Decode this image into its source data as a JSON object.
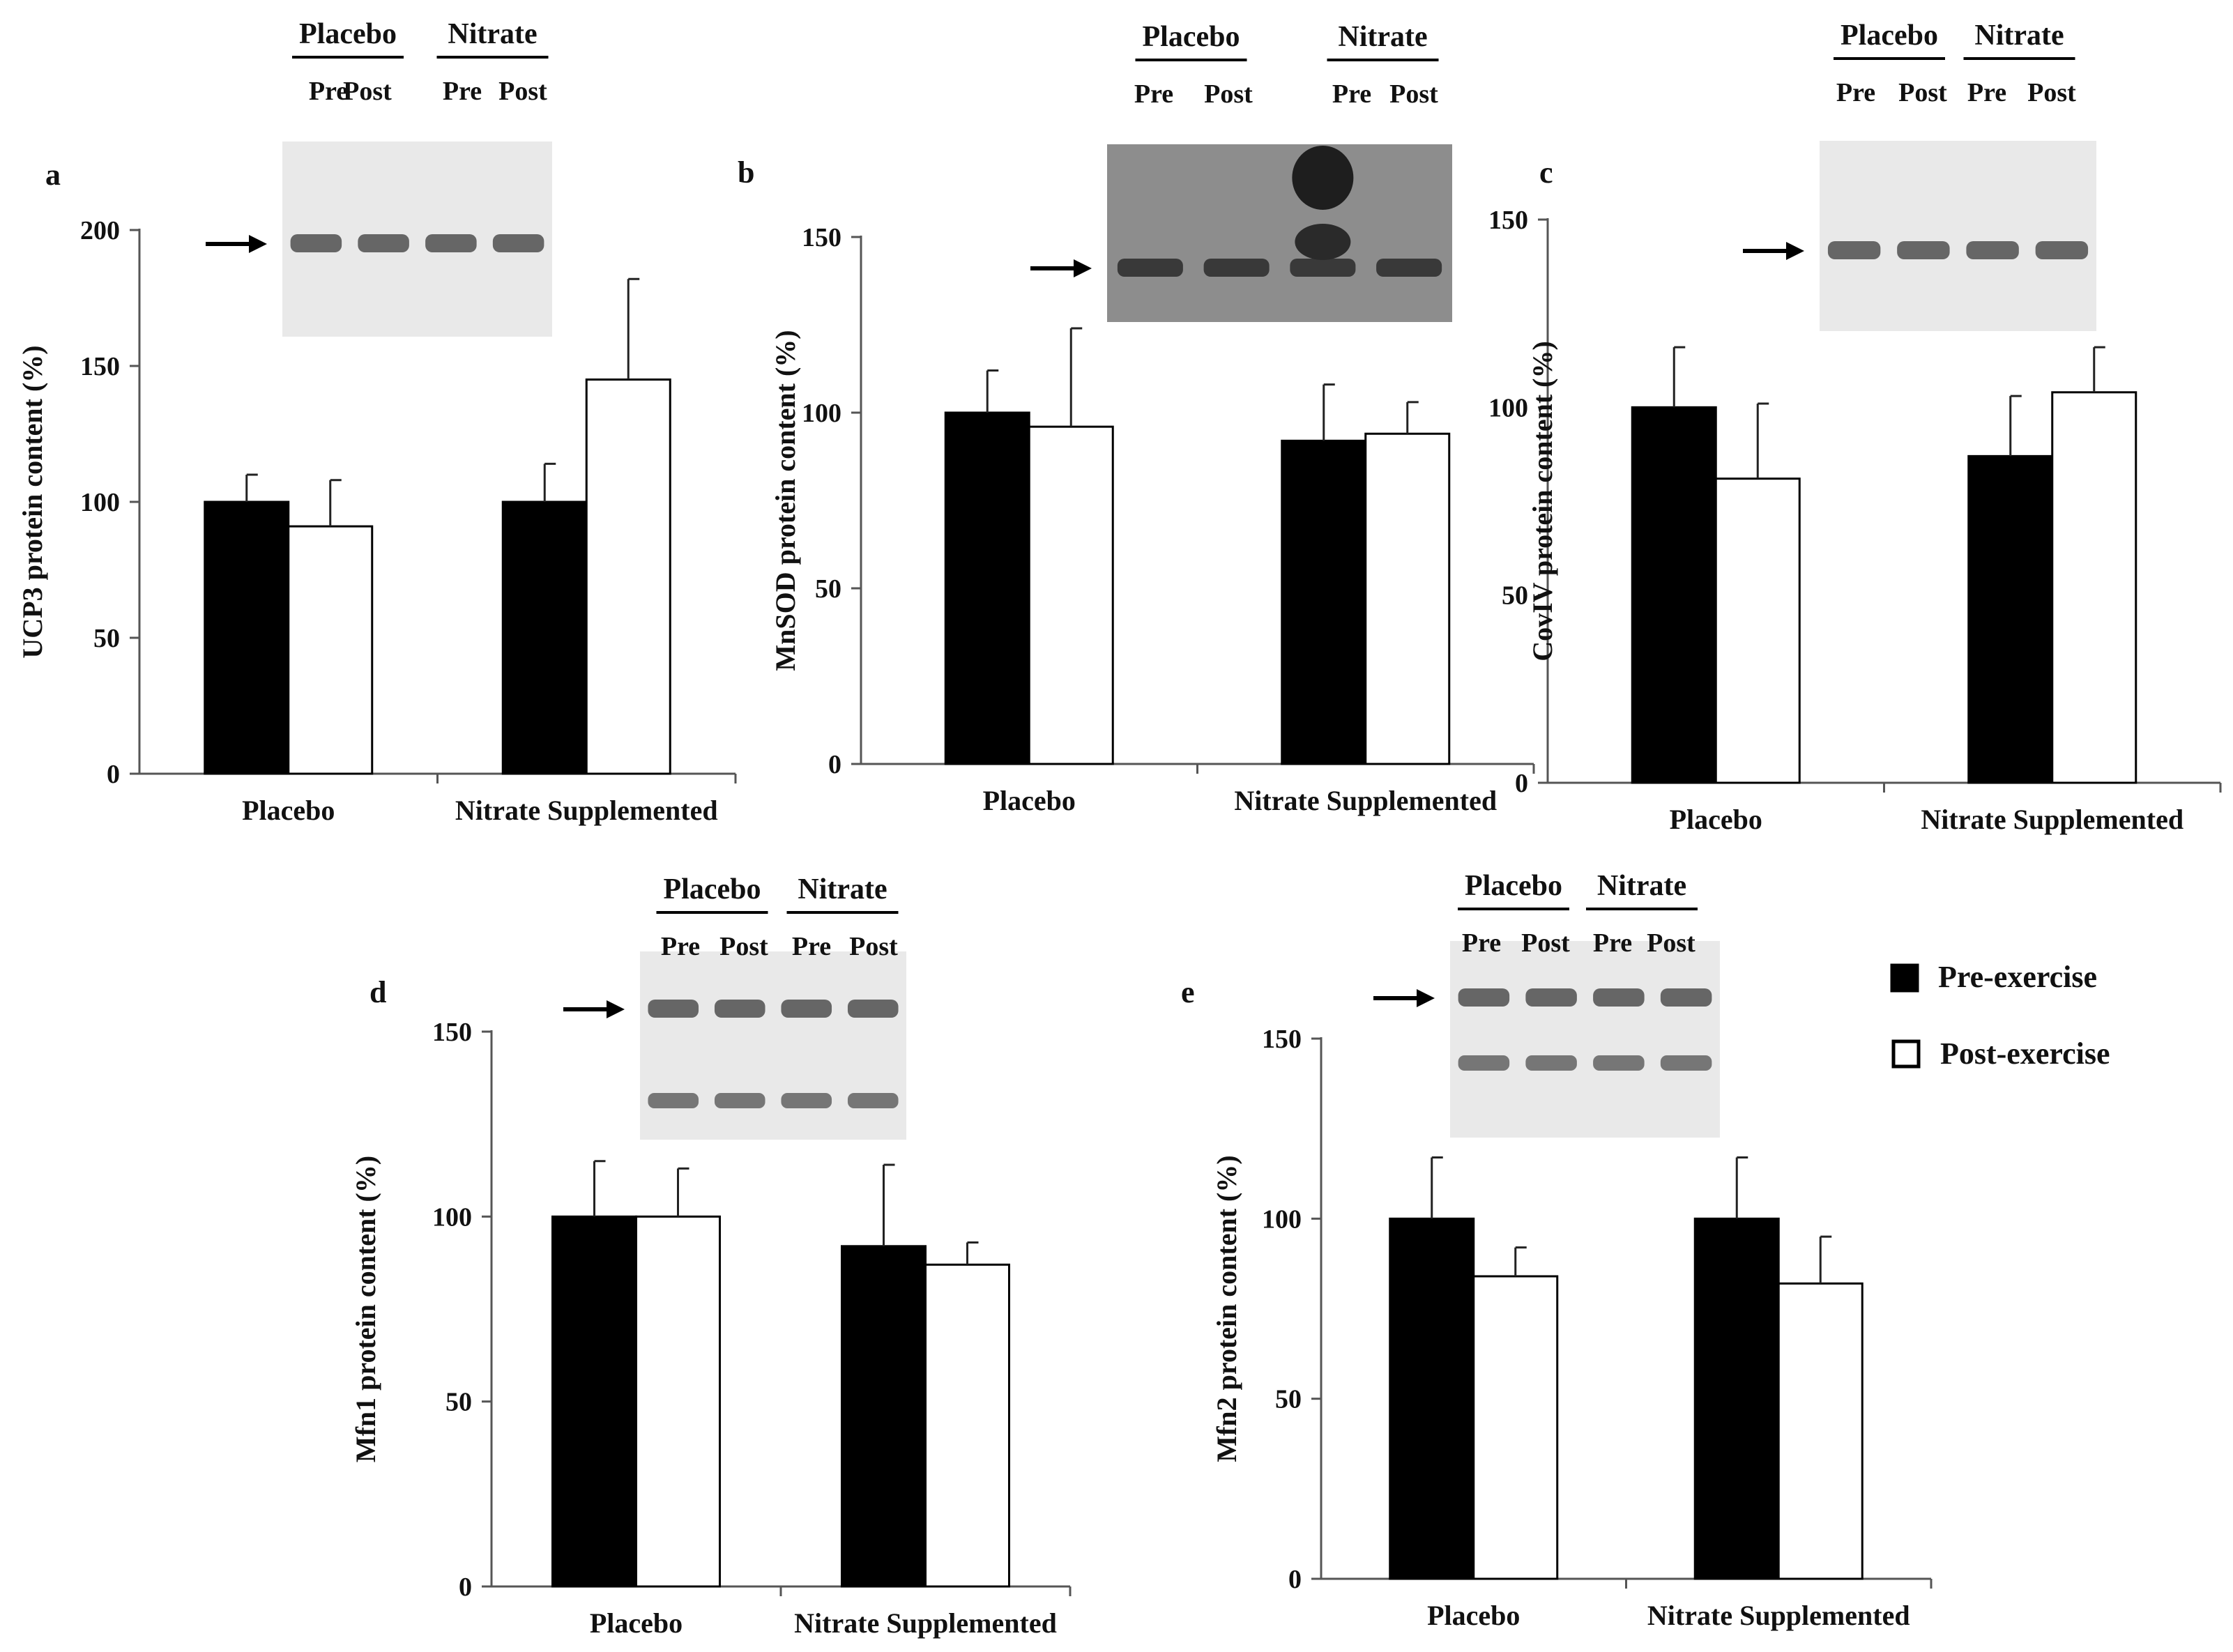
{
  "legend": {
    "pre": "Pre-exercise",
    "post": "Post-exercise"
  },
  "colors": {
    "pre": "#000000",
    "post": "#ffffff",
    "axis": "#555555",
    "blot_bg": "#e9e9e9",
    "band": "#3a3a3a"
  },
  "chart_data": [
    {
      "panel": "a",
      "type": "bar",
      "ylabel": "UCP3 protein content (%)",
      "categories": [
        "Placebo",
        "Nitrate Supplemented"
      ],
      "ylim": [
        0,
        200
      ],
      "yticks": [
        0,
        50,
        100,
        150,
        200
      ],
      "series": [
        {
          "name": "Pre-exercise",
          "values": [
            100,
            100
          ],
          "errors": [
            10,
            14
          ]
        },
        {
          "name": "Post-exercise",
          "values": [
            91,
            145
          ],
          "errors": [
            17,
            37
          ]
        }
      ],
      "blot": {
        "groups": [
          "Placebo",
          "Nitrate"
        ],
        "lanes": [
          "Pre",
          "Post",
          "Pre",
          "Post"
        ]
      }
    },
    {
      "panel": "b",
      "type": "bar",
      "ylabel": "MnSOD protein content (%)",
      "categories": [
        "Placebo",
        "Nitrate Supplemented"
      ],
      "ylim": [
        0,
        150
      ],
      "yticks": [
        0,
        50,
        100,
        150
      ],
      "series": [
        {
          "name": "Pre-exercise",
          "values": [
            100,
            92
          ],
          "errors": [
            12,
            16
          ]
        },
        {
          "name": "Post-exercise",
          "values": [
            96,
            94
          ],
          "errors": [
            28,
            9
          ]
        }
      ],
      "blot": {
        "groups": [
          "Placebo",
          "Nitrate"
        ],
        "lanes": [
          "Pre",
          "Post",
          "Pre",
          "Post"
        ]
      }
    },
    {
      "panel": "c",
      "type": "bar",
      "ylabel": "CovIV protein content (%)",
      "categories": [
        "Placebo",
        "Nitrate Supplemented"
      ],
      "ylim": [
        0,
        150
      ],
      "yticks": [
        0,
        50,
        100,
        150
      ],
      "series": [
        {
          "name": "Pre-exercise",
          "values": [
            100,
            87
          ],
          "errors": [
            16,
            16
          ]
        },
        {
          "name": "Post-exercise",
          "values": [
            81,
            104
          ],
          "errors": [
            20,
            12
          ]
        }
      ],
      "blot": {
        "groups": [
          "Placebo",
          "Nitrate"
        ],
        "lanes": [
          "Pre",
          "Post",
          "Pre",
          "Post"
        ]
      }
    },
    {
      "panel": "d",
      "type": "bar",
      "ylabel": "Mfn1 protein content (%)",
      "categories": [
        "Placebo",
        "Nitrate Supplemented"
      ],
      "ylim": [
        0,
        150
      ],
      "yticks": [
        0,
        50,
        100,
        150
      ],
      "series": [
        {
          "name": "Pre-exercise",
          "values": [
            100,
            92
          ],
          "errors": [
            15,
            22
          ]
        },
        {
          "name": "Post-exercise",
          "values": [
            100,
            87
          ],
          "errors": [
            13,
            6
          ]
        }
      ],
      "blot": {
        "groups": [
          "Placebo",
          "Nitrate"
        ],
        "lanes": [
          "Pre",
          "Post",
          "Pre",
          "Post"
        ]
      }
    },
    {
      "panel": "e",
      "type": "bar",
      "ylabel": "Mfn2 protein content (%)",
      "categories": [
        "Placebo",
        "Nitrate Supplemented"
      ],
      "ylim": [
        0,
        150
      ],
      "yticks": [
        0,
        50,
        100,
        150
      ],
      "series": [
        {
          "name": "Pre-exercise",
          "values": [
            100,
            100
          ],
          "errors": [
            17,
            17
          ]
        },
        {
          "name": "Post-exercise",
          "values": [
            84,
            82
          ],
          "errors": [
            8,
            13
          ]
        }
      ],
      "blot": {
        "groups": [
          "Placebo",
          "Nitrate"
        ],
        "lanes": [
          "Pre",
          "Post",
          "Pre",
          "Post"
        ]
      }
    }
  ]
}
